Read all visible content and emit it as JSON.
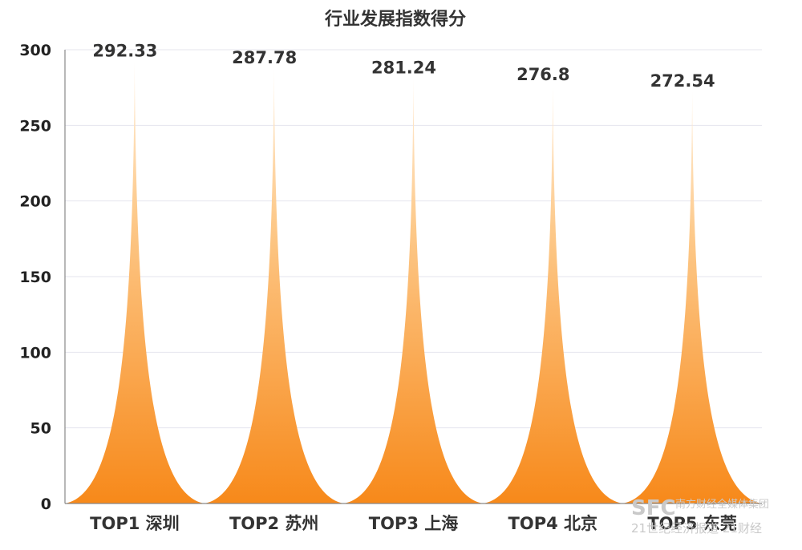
{
  "chart_data": {
    "type": "area",
    "title": "行业发展指数得分",
    "categories": [
      "TOP1 深圳",
      "TOP2 苏州",
      "TOP3 上海",
      "TOP4 北京",
      "TOP5 东莞"
    ],
    "values": [
      292.33,
      287.78,
      281.24,
      276.8,
      272.54
    ],
    "value_labels": [
      "292.33",
      "287.78",
      "281.24",
      "276.8",
      "272.54"
    ],
    "y_ticks": [
      "0",
      "50",
      "100",
      "150",
      "200",
      "250",
      "300"
    ],
    "ylim": [
      0,
      300
    ],
    "xlabel": "",
    "ylabel": "",
    "grid": true,
    "legend": "none",
    "colors": {
      "fill_top": "#fff0dd",
      "fill_bottom": "#f7891a"
    }
  },
  "watermark": {
    "logo": "SFC",
    "line1": "南方财经全媒体集团",
    "line2": "21世纪经济报道 21财经"
  }
}
